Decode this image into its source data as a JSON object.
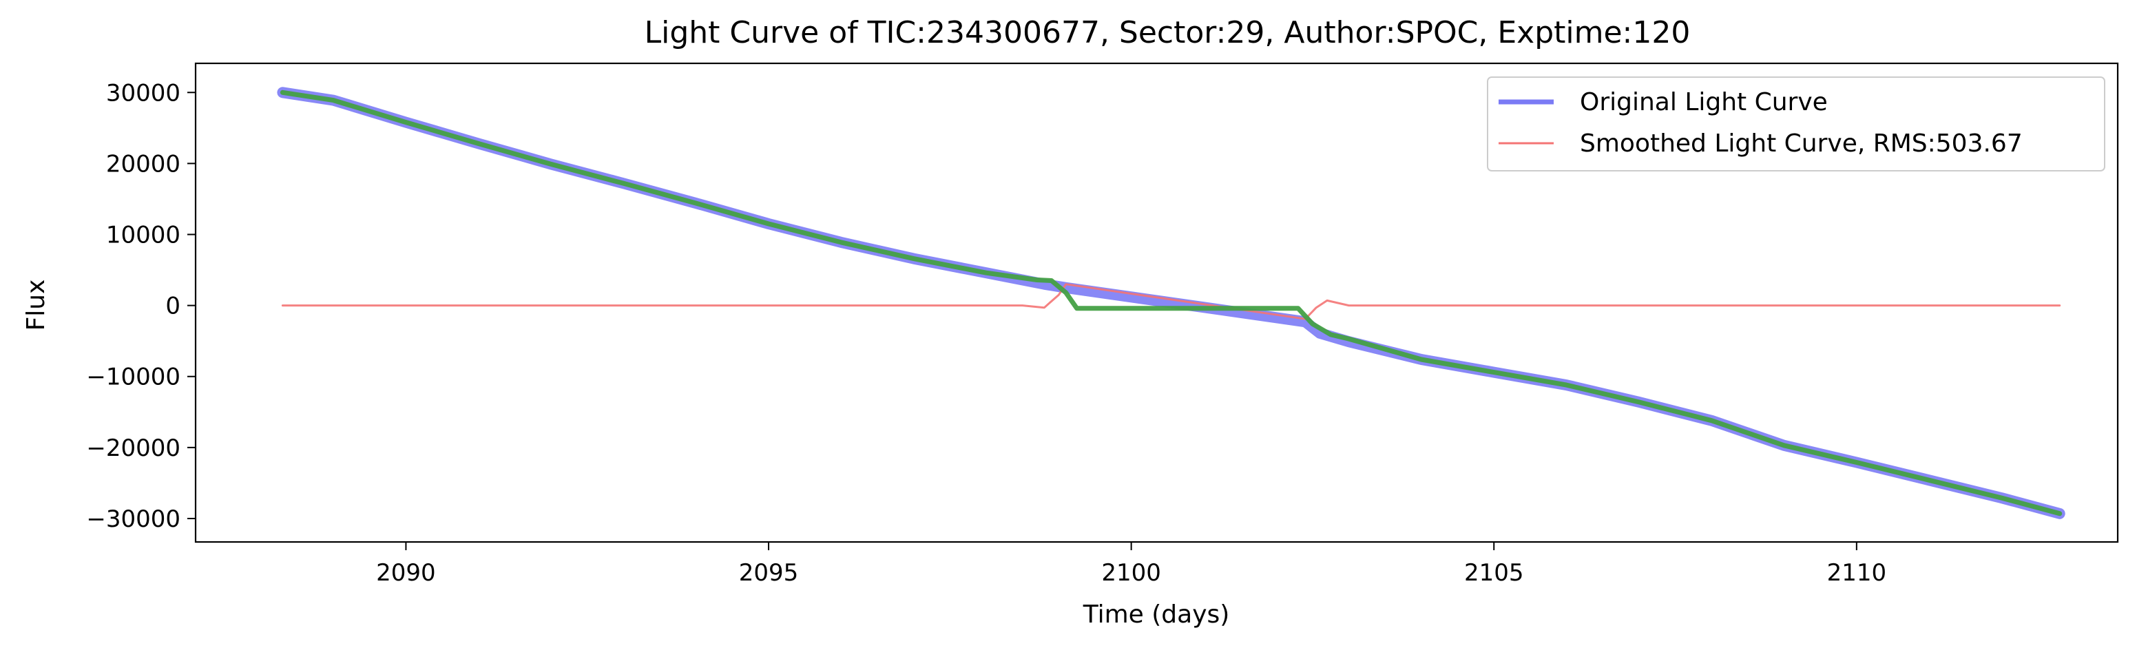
{
  "chart_data": {
    "type": "line",
    "title": "Light Curve of TIC:234300677, Sector:29, Author:SPOC, Exptime:120",
    "xlabel": "Time (days)",
    "ylabel": "Flux",
    "xlim": [
      2087.1,
      2113.6
    ],
    "ylim": [
      -33300,
      34100
    ],
    "x_ticks": [
      2090,
      2095,
      2100,
      2105,
      2110
    ],
    "y_ticks": [
      30000,
      20000,
      10000,
      0,
      -10000,
      -20000,
      -30000
    ],
    "x_tick_labels": [
      "2090",
      "2095",
      "2100",
      "2105",
      "2110"
    ],
    "y_tick_labels": [
      "30000",
      "20000",
      "10000",
      "0",
      "−10000",
      "−20000",
      "−30000"
    ],
    "grid": false,
    "legend_position": "top-right",
    "series": [
      {
        "name": "Original Light Curve",
        "color": "#7b7bf5",
        "style": "thick line",
        "x": [
          2088.3,
          2089,
          2090,
          2091,
          2092,
          2093,
          2094,
          2095,
          2096,
          2097,
          2098,
          2098.8,
          2099.1,
          2102.4,
          2102.6,
          2103,
          2104,
          2105,
          2106,
          2107,
          2108,
          2109,
          2110,
          2111,
          2112,
          2112.8
        ],
        "y": [
          30000,
          28900,
          25800,
          22800,
          19900,
          17200,
          14400,
          11500,
          8900,
          6600,
          4600,
          3000,
          2500,
          -2300,
          -3900,
          -5100,
          -7600,
          -9400,
          -11200,
          -13600,
          -16200,
          -19700,
          -22100,
          -24600,
          -27100,
          -29300
        ]
      },
      {
        "name": "Smoothed Light Curve, RMS:503.67",
        "color": "#f47474",
        "style": "thin line",
        "x": [
          2088.3,
          2089,
          2090,
          2091,
          2092,
          2093,
          2094,
          2095,
          2096,
          2097,
          2098,
          2098.5,
          2098.8,
          2099.0,
          2099.1,
          2102.4,
          2102.55,
          2102.7,
          2103,
          2104,
          2105,
          2106,
          2107,
          2108,
          2109,
          2110,
          2111,
          2112,
          2112.8
        ],
        "y": [
          0,
          0,
          0,
          0,
          0,
          0,
          0,
          0,
          0,
          0,
          0,
          0,
          -300,
          1500,
          3000,
          -1900,
          -300,
          700,
          0,
          0,
          0,
          0,
          0,
          0,
          0,
          0,
          0,
          0,
          0
        ]
      },
      {
        "color": "#44a044",
        "style": "trend line",
        "x": [
          2088.3,
          2089,
          2090,
          2091,
          2092,
          2093,
          2094,
          2095,
          2096,
          2097,
          2098,
          2098.7,
          2098.9,
          2099.1,
          2099.25,
          2102.3,
          2102.5,
          2102.75,
          2103,
          2104,
          2105,
          2106,
          2107,
          2108,
          2109,
          2110,
          2111,
          2112,
          2112.8
        ],
        "y": [
          30000,
          28900,
          25800,
          22800,
          19900,
          17200,
          14400,
          11500,
          8900,
          6600,
          4600,
          3600,
          3500,
          1800,
          -400,
          -400,
          -2600,
          -4100,
          -4700,
          -7600,
          -9400,
          -11200,
          -13600,
          -16200,
          -19700,
          -22100,
          -24600,
          -27100,
          -29300
        ]
      }
    ]
  }
}
